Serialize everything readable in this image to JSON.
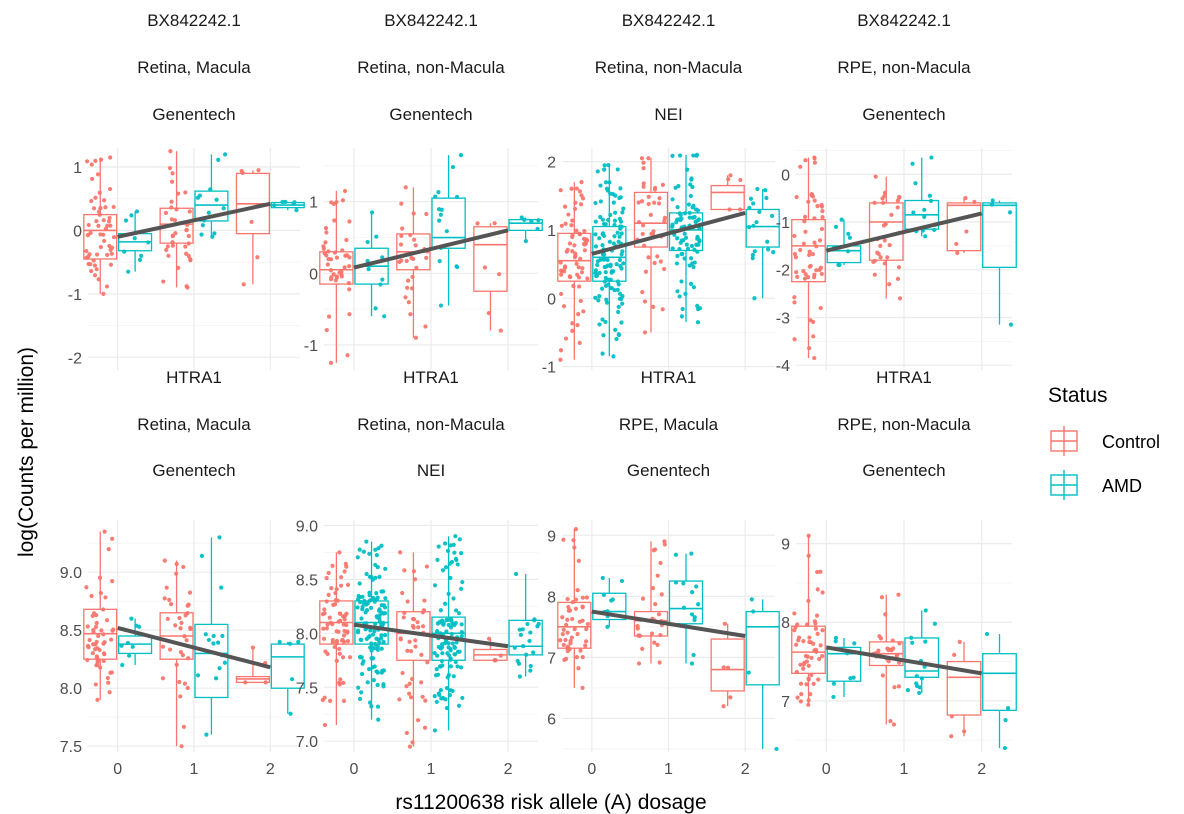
{
  "figure": {
    "xlabel": "rs11200638 risk allele (A) dosage",
    "ylabel": "log(Counts per million)",
    "legend": {
      "title": "Status",
      "placement": "right",
      "entries": [
        {
          "label": "Control",
          "color": "#F8766D"
        },
        {
          "label": "AMD",
          "color": "#00BFC4"
        }
      ]
    },
    "colors": {
      "Control": "#F8766D",
      "AMD": "#00BFC4",
      "trend": "#555555",
      "grid": "#EBEBEB"
    }
  },
  "chart_data": [
    {
      "type": "boxplot",
      "strip": [
        "BX842242.1",
        "Retina, Macula",
        "Genentech"
      ],
      "x_ticks": [
        0,
        1,
        2
      ],
      "y_ticks": [
        -2,
        -1,
        0,
        1
      ],
      "ylim": [
        -2.2,
        1.3
      ],
      "trend": [
        [
          0,
          -0.1
        ],
        [
          2,
          0.42
        ]
      ],
      "groups": [
        {
          "status": "Control",
          "dosage": 0,
          "q1": -0.45,
          "median": 0.0,
          "q3": 0.25,
          "min": -1.0,
          "max": 1.15,
          "n": 55
        },
        {
          "status": "AMD",
          "dosage": 0,
          "q1": -0.32,
          "median": -0.18,
          "q3": -0.05,
          "min": -0.65,
          "max": 0.3,
          "n": 9
        },
        {
          "status": "Control",
          "dosage": 1,
          "q1": -0.2,
          "median": 0.1,
          "q3": 0.35,
          "min": -0.9,
          "max": 1.25,
          "n": 35
        },
        {
          "status": "AMD",
          "dosage": 1,
          "q1": 0.15,
          "median": 0.4,
          "q3": 0.62,
          "min": -0.1,
          "max": 1.2,
          "n": 14
        },
        {
          "status": "Control",
          "dosage": 2,
          "q1": -0.05,
          "median": 0.42,
          "q3": 0.9,
          "min": -0.85,
          "max": 0.95,
          "n": 6
        },
        {
          "status": "AMD",
          "dosage": 2,
          "q1": 0.36,
          "median": 0.4,
          "q3": 0.44,
          "min": 0.32,
          "max": 0.45,
          "n": 6
        }
      ]
    },
    {
      "type": "boxplot",
      "strip": [
        "BX842242.1",
        "Retina, non-Macula",
        "Genentech"
      ],
      "x_ticks": [
        0,
        1,
        2
      ],
      "y_ticks": [
        -1,
        0,
        1
      ],
      "ylim": [
        -1.35,
        1.75
      ],
      "trend": [
        [
          0,
          0.08
        ],
        [
          2,
          0.6
        ]
      ],
      "groups": [
        {
          "status": "Control",
          "dosage": 0,
          "q1": -0.15,
          "median": 0.05,
          "q3": 0.3,
          "min": -1.25,
          "max": 1.15,
          "n": 45
        },
        {
          "status": "AMD",
          "dosage": 0,
          "q1": -0.15,
          "median": 0.1,
          "q3": 0.35,
          "min": -0.6,
          "max": 0.85,
          "n": 10
        },
        {
          "status": "Control",
          "dosage": 1,
          "q1": 0.05,
          "median": 0.3,
          "q3": 0.55,
          "min": -0.9,
          "max": 1.2,
          "n": 30
        },
        {
          "status": "AMD",
          "dosage": 1,
          "q1": 0.35,
          "median": 0.5,
          "q3": 1.05,
          "min": -0.45,
          "max": 1.65,
          "n": 15
        },
        {
          "status": "Control",
          "dosage": 2,
          "q1": -0.25,
          "median": 0.4,
          "q3": 0.65,
          "min": -0.8,
          "max": 0.7,
          "n": 6
        },
        {
          "status": "AMD",
          "dosage": 2,
          "q1": 0.6,
          "median": 0.7,
          "q3": 0.75,
          "min": 0.45,
          "max": 0.78,
          "n": 6
        }
      ]
    },
    {
      "type": "boxplot",
      "strip": [
        "BX842242.1",
        "Retina, non-Macula",
        "NEI"
      ],
      "x_ticks": [
        0,
        1,
        2
      ],
      "y_ticks": [
        -1,
        0,
        1,
        2
      ],
      "ylim": [
        -1.05,
        2.2
      ],
      "trend": [
        [
          0,
          0.65
        ],
        [
          2,
          1.25
        ]
      ],
      "groups": [
        {
          "status": "Control",
          "dosage": 0,
          "q1": 0.25,
          "median": 0.55,
          "q3": 0.95,
          "min": -0.9,
          "max": 1.7,
          "n": 70
        },
        {
          "status": "AMD",
          "dosage": 0,
          "q1": 0.25,
          "median": 0.6,
          "q3": 1.05,
          "min": -0.85,
          "max": 1.95,
          "n": 120
        },
        {
          "status": "Control",
          "dosage": 1,
          "q1": 0.75,
          "median": 1.1,
          "q3": 1.55,
          "min": -0.5,
          "max": 2.05,
          "n": 40
        },
        {
          "status": "AMD",
          "dosage": 1,
          "q1": 0.7,
          "median": 1.0,
          "q3": 1.25,
          "min": -0.35,
          "max": 2.1,
          "n": 90
        },
        {
          "status": "Control",
          "dosage": 2,
          "q1": 1.3,
          "median": 1.55,
          "q3": 1.65,
          "min": 1.3,
          "max": 1.8,
          "n": 5
        },
        {
          "status": "AMD",
          "dosage": 2,
          "q1": 0.75,
          "median": 1.05,
          "q3": 1.3,
          "min": 0.0,
          "max": 1.6,
          "n": 18
        }
      ]
    },
    {
      "type": "boxplot",
      "strip": [
        "BX842242.1",
        "RPE, non-Macula",
        "Genentech"
      ],
      "x_ticks": [
        0,
        1,
        2
      ],
      "y_ticks": [
        -4,
        -3,
        -2,
        -1,
        0
      ],
      "ylim": [
        -4.1,
        0.55
      ],
      "trend": [
        [
          0,
          -1.6
        ],
        [
          2,
          -0.82
        ]
      ],
      "groups": [
        {
          "status": "Control",
          "dosage": 0,
          "q1": -2.25,
          "median": -1.5,
          "q3": -0.95,
          "min": -3.85,
          "max": 0.35,
          "n": 55
        },
        {
          "status": "AMD",
          "dosage": 0,
          "q1": -1.85,
          "median": -1.6,
          "q3": -1.5,
          "min": -1.9,
          "max": -0.95,
          "n": 8
        },
        {
          "status": "Control",
          "dosage": 1,
          "q1": -1.8,
          "median": -1.0,
          "q3": -0.6,
          "min": -2.6,
          "max": -0.05,
          "n": 30
        },
        {
          "status": "AMD",
          "dosage": 1,
          "q1": -1.15,
          "median": -0.85,
          "q3": -0.55,
          "min": -1.3,
          "max": 0.35,
          "n": 14
        },
        {
          "status": "Control",
          "dosage": 2,
          "q1": -1.6,
          "median": -0.65,
          "q3": -0.6,
          "min": -1.65,
          "max": -0.5,
          "n": 5
        },
        {
          "status": "AMD",
          "dosage": 2,
          "q1": -1.95,
          "median": -0.65,
          "q3": -0.6,
          "min": -3.15,
          "max": -0.55,
          "n": 4
        }
      ]
    },
    {
      "type": "boxplot",
      "strip": [
        "HTRA1",
        "Retina, Macula",
        "Genentech"
      ],
      "x_ticks": [
        0,
        1,
        2
      ],
      "y_ticks": [
        7.5,
        8.0,
        8.5,
        9.0
      ],
      "ylim": [
        7.45,
        9.45
      ],
      "trend": [
        [
          0,
          8.52
        ],
        [
          2,
          8.18
        ]
      ],
      "groups": [
        {
          "status": "Control",
          "dosage": 0,
          "q1": 8.25,
          "median": 8.47,
          "q3": 8.68,
          "min": 7.9,
          "max": 9.35,
          "n": 55
        },
        {
          "status": "AMD",
          "dosage": 0,
          "q1": 8.3,
          "median": 8.38,
          "q3": 8.45,
          "min": 8.2,
          "max": 8.6,
          "n": 9
        },
        {
          "status": "Control",
          "dosage": 1,
          "q1": 8.25,
          "median": 8.45,
          "q3": 8.65,
          "min": 7.5,
          "max": 9.1,
          "n": 35
        },
        {
          "status": "AMD",
          "dosage": 1,
          "q1": 7.92,
          "median": 8.3,
          "q3": 8.55,
          "min": 7.6,
          "max": 9.3,
          "n": 15
        },
        {
          "status": "Control",
          "dosage": 2,
          "q1": 8.05,
          "median": 8.08,
          "q3": 8.1,
          "min": 8.05,
          "max": 8.35,
          "n": 4
        },
        {
          "status": "AMD",
          "dosage": 2,
          "q1": 8.0,
          "median": 8.27,
          "q3": 8.38,
          "min": 7.78,
          "max": 8.4,
          "n": 5
        }
      ]
    },
    {
      "type": "boxplot",
      "strip": [
        "HTRA1",
        "Retina, non-Macula",
        "NEI"
      ],
      "x_ticks": [
        0,
        1,
        2
      ],
      "y_ticks": [
        7.0,
        7.5,
        8.0,
        8.5,
        9.0
      ],
      "ylim": [
        6.9,
        9.05
      ],
      "trend": [
        [
          0,
          8.08
        ],
        [
          2,
          7.88
        ]
      ],
      "groups": [
        {
          "status": "Control",
          "dosage": 0,
          "q1": 7.9,
          "median": 8.1,
          "q3": 8.3,
          "min": 7.15,
          "max": 8.75,
          "n": 70
        },
        {
          "status": "AMD",
          "dosage": 0,
          "q1": 7.9,
          "median": 8.1,
          "q3": 8.3,
          "min": 7.2,
          "max": 8.85,
          "n": 130
        },
        {
          "status": "Control",
          "dosage": 1,
          "q1": 7.75,
          "median": 8.0,
          "q3": 8.2,
          "min": 6.95,
          "max": 8.75,
          "n": 45
        },
        {
          "status": "AMD",
          "dosage": 1,
          "q1": 7.75,
          "median": 8.0,
          "q3": 8.15,
          "min": 7.1,
          "max": 8.9,
          "n": 110
        },
        {
          "status": "Control",
          "dosage": 2,
          "q1": 7.75,
          "median": 7.8,
          "q3": 7.85,
          "min": 7.75,
          "max": 7.95,
          "n": 5
        },
        {
          "status": "AMD",
          "dosage": 2,
          "q1": 7.8,
          "median": 7.88,
          "q3": 8.12,
          "min": 7.6,
          "max": 8.55,
          "n": 20
        }
      ]
    },
    {
      "type": "boxplot",
      "strip": [
        "HTRA1",
        "RPE, Macula",
        "Genentech"
      ],
      "x_ticks": [
        0,
        1,
        2
      ],
      "y_ticks": [
        6,
        7,
        8,
        9
      ],
      "ylim": [
        5.45,
        9.25
      ],
      "trend": [
        [
          0,
          7.75
        ],
        [
          2,
          7.35
        ]
      ],
      "groups": [
        {
          "status": "Control",
          "dosage": 0,
          "q1": 7.15,
          "median": 7.5,
          "q3": 7.9,
          "min": 6.5,
          "max": 9.1,
          "n": 50
        },
        {
          "status": "AMD",
          "dosage": 0,
          "q1": 7.62,
          "median": 7.75,
          "q3": 8.05,
          "min": 7.5,
          "max": 8.3,
          "n": 9
        },
        {
          "status": "Control",
          "dosage": 1,
          "q1": 7.35,
          "median": 7.6,
          "q3": 7.75,
          "min": 6.9,
          "max": 8.9,
          "n": 30
        },
        {
          "status": "AMD",
          "dosage": 1,
          "q1": 7.55,
          "median": 7.8,
          "q3": 8.25,
          "min": 6.9,
          "max": 8.7,
          "n": 14
        },
        {
          "status": "Control",
          "dosage": 2,
          "q1": 6.45,
          "median": 6.8,
          "q3": 7.3,
          "min": 6.2,
          "max": 7.55,
          "n": 5
        },
        {
          "status": "AMD",
          "dosage": 2,
          "q1": 6.55,
          "median": 7.5,
          "q3": 7.75,
          "min": 5.5,
          "max": 7.95,
          "n": 4
        }
      ]
    },
    {
      "type": "boxplot",
      "strip": [
        "HTRA1",
        "RPE, non-Macula",
        "Genentech"
      ],
      "x_ticks": [
        0,
        1,
        2
      ],
      "y_ticks": [
        7,
        8,
        9
      ],
      "ylim": [
        6.35,
        9.3
      ],
      "trend": [
        [
          0,
          7.68
        ],
        [
          2,
          7.35
        ]
      ],
      "groups": [
        {
          "status": "Control",
          "dosage": 0,
          "q1": 7.35,
          "median": 7.62,
          "q3": 7.95,
          "min": 6.95,
          "max": 9.1,
          "n": 55
        },
        {
          "status": "AMD",
          "dosage": 0,
          "q1": 7.25,
          "median": 7.6,
          "q3": 7.68,
          "min": 7.05,
          "max": 7.8,
          "n": 8
        },
        {
          "status": "Control",
          "dosage": 1,
          "q1": 7.45,
          "median": 7.6,
          "q3": 7.75,
          "min": 6.7,
          "max": 8.35,
          "n": 30
        },
        {
          "status": "AMD",
          "dosage": 1,
          "q1": 7.3,
          "median": 7.38,
          "q3": 7.8,
          "min": 7.1,
          "max": 8.15,
          "n": 14
        },
        {
          "status": "Control",
          "dosage": 2,
          "q1": 6.82,
          "median": 7.3,
          "q3": 7.5,
          "min": 6.55,
          "max": 7.75,
          "n": 5
        },
        {
          "status": "AMD",
          "dosage": 2,
          "q1": 6.88,
          "median": 7.35,
          "q3": 7.6,
          "min": 6.4,
          "max": 7.85,
          "n": 4
        }
      ]
    }
  ]
}
